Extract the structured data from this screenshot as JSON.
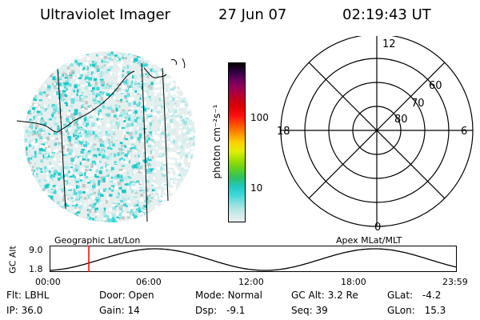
{
  "header": {
    "title": "Ultraviolet Imager",
    "date": "27 Jun 07",
    "time": "02:19:43 UT"
  },
  "colorbar": {
    "unit_label": "photon cm⁻²s⁻¹",
    "ticks": [
      "100",
      "10"
    ],
    "colors": [
      "#e8f0f0",
      "#c8e8e8",
      "#90e0e0",
      "#40d8d8",
      "#20c8c0",
      "#30c060",
      "#60d020",
      "#a0e000",
      "#e0f000",
      "#ffd000",
      "#ff9000",
      "#ff5000",
      "#ff1010",
      "#e00000",
      "#c00020",
      "#a00050",
      "#700060",
      "#300040",
      "#000000"
    ]
  },
  "polar": {
    "labels": {
      "top": "12",
      "left": "18",
      "right": "6",
      "bottom": "0",
      "lat60": "60",
      "lat70": "70",
      "lat80": "80"
    }
  },
  "orbit": {
    "left_label": "Geographic Lat/Lon",
    "right_label": "Apex MLat/MLT",
    "axis_title": "GC Alt",
    "y_ticks": [
      "9.0",
      "1.8"
    ],
    "x_ticks": [
      "00:00",
      "06:00",
      "12:00",
      "18:00",
      "23:59"
    ],
    "marker_color": "#ff0000"
  },
  "footer": {
    "row1": [
      {
        "label": "Flt:",
        "value": "LBHL"
      },
      {
        "label": "Door:",
        "value": "Open"
      },
      {
        "label": "Mode:",
        "value": "Normal"
      },
      {
        "label": "GC Alt:",
        "value": "3.2 Re"
      },
      {
        "label": "GLat:",
        "value": "-4.2"
      }
    ],
    "row2": [
      {
        "label": "IP:",
        "value": "36.0"
      },
      {
        "label": "Gain:",
        "value": "14"
      },
      {
        "label": "Dsp:",
        "value": "-9.1"
      },
      {
        "label": "Seq:",
        "value": "39"
      },
      {
        "label": "GLon:",
        "value": "15.3"
      }
    ]
  }
}
